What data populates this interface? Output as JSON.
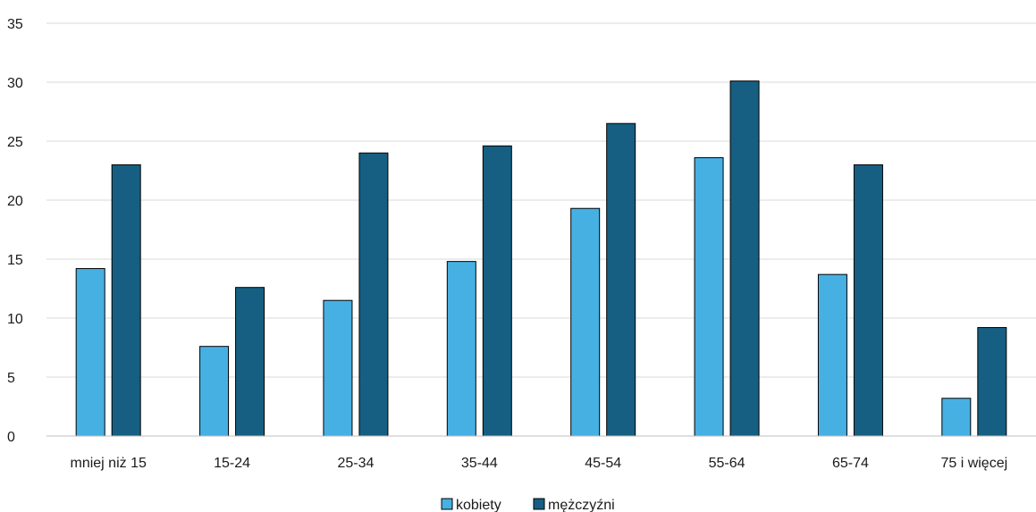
{
  "chart_data": {
    "type": "bar",
    "title": "",
    "xlabel": "",
    "ylabel": "",
    "ylim": [
      0,
      35
    ],
    "yticks": [
      0,
      5,
      10,
      15,
      20,
      25,
      30,
      35
    ],
    "grid": true,
    "legend_position": "bottom",
    "categories": [
      "mniej niż 15",
      "15-24",
      "25-34",
      "35-44",
      "45-54",
      "55-64",
      "65-74",
      "75 i więcej"
    ],
    "series": [
      {
        "name": "kobiety",
        "color": "#47b0e3",
        "values": [
          14.2,
          7.6,
          11.5,
          14.8,
          19.3,
          23.6,
          13.7,
          3.2
        ]
      },
      {
        "name": "mężczyźni",
        "color": "#165f82",
        "values": [
          23.0,
          12.6,
          24.0,
          24.6,
          26.5,
          30.1,
          23.0,
          9.2
        ]
      }
    ]
  }
}
